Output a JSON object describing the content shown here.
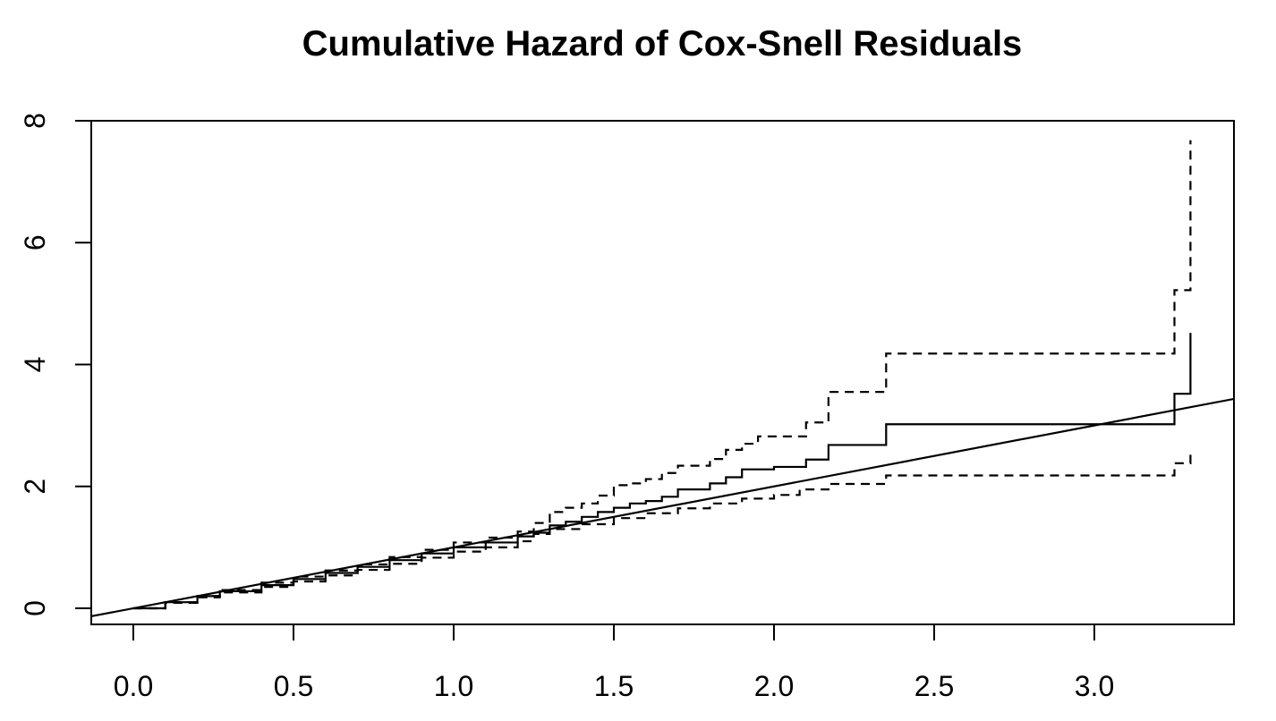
{
  "chart_data": {
    "type": "line",
    "title": "Cumulative Hazard of Cox-Snell Residuals",
    "xlabel": "",
    "ylabel": "",
    "xlim": [
      -0.13,
      3.44
    ],
    "ylim": [
      -0.3,
      8.0
    ],
    "x_ticks": [
      "0.0",
      "0.5",
      "1.0",
      "1.5",
      "2.0",
      "2.5",
      "3.0"
    ],
    "x_tick_values": [
      0.0,
      0.5,
      1.0,
      1.5,
      2.0,
      2.5,
      3.0
    ],
    "y_ticks": [
      "0",
      "2",
      "4",
      "6",
      "8"
    ],
    "y_tick_values": [
      0,
      2,
      4,
      6,
      8
    ],
    "grid": false,
    "colors": {
      "series": "#000000",
      "background": "#ffffff"
    },
    "series": [
      {
        "style": "solid-step",
        "x": [
          0.0,
          0.1,
          0.2,
          0.27,
          0.4,
          0.5,
          0.6,
          0.7,
          0.8,
          0.9,
          1.0,
          1.1,
          1.2,
          1.25,
          1.3,
          1.35,
          1.4,
          1.45,
          1.5,
          1.55,
          1.6,
          1.65,
          1.7,
          1.8,
          1.85,
          1.9,
          2.0,
          2.1,
          2.17,
          2.35,
          3.25,
          3.3
        ],
        "y": [
          0.0,
          0.1,
          0.2,
          0.28,
          0.38,
          0.48,
          0.58,
          0.68,
          0.79,
          0.9,
          1.0,
          1.08,
          1.18,
          1.24,
          1.36,
          1.42,
          1.5,
          1.58,
          1.65,
          1.72,
          1.76,
          1.83,
          1.95,
          2.05,
          2.15,
          2.28,
          2.32,
          2.44,
          2.68,
          3.02,
          3.52,
          4.52
        ]
      },
      {
        "style": "dashed-step",
        "x": [
          0.0,
          0.1,
          0.2,
          0.27,
          0.4,
          0.5,
          0.6,
          0.7,
          0.8,
          0.9,
          1.0,
          1.1,
          1.2,
          1.25,
          1.3,
          1.35,
          1.4,
          1.45,
          1.5,
          1.55,
          1.6,
          1.65,
          1.7,
          1.8,
          1.85,
          1.9,
          1.95,
          2.1,
          2.17,
          2.35,
          3.25,
          3.3
        ],
        "y": [
          0.0,
          0.1,
          0.2,
          0.3,
          0.42,
          0.52,
          0.62,
          0.72,
          0.84,
          0.96,
          1.08,
          1.16,
          1.26,
          1.4,
          1.58,
          1.65,
          1.72,
          1.85,
          2.02,
          2.05,
          2.12,
          2.22,
          2.34,
          2.45,
          2.6,
          2.7,
          2.82,
          3.05,
          3.55,
          4.18,
          5.22,
          7.68
        ]
      },
      {
        "style": "dashed-step",
        "x": [
          0.0,
          0.1,
          0.2,
          0.27,
          0.4,
          0.5,
          0.6,
          0.7,
          0.8,
          0.9,
          1.0,
          1.1,
          1.2,
          1.25,
          1.3,
          1.4,
          1.5,
          1.6,
          1.7,
          1.8,
          1.9,
          2.0,
          2.08,
          2.17,
          2.35,
          3.25,
          3.3
        ],
        "y": [
          0.0,
          0.09,
          0.18,
          0.26,
          0.35,
          0.44,
          0.54,
          0.63,
          0.73,
          0.83,
          0.93,
          1.0,
          1.1,
          1.22,
          1.3,
          1.38,
          1.48,
          1.56,
          1.64,
          1.72,
          1.8,
          1.86,
          1.95,
          2.04,
          2.18,
          2.38,
          2.62
        ]
      },
      {
        "style": "reference-line",
        "intercept": 0,
        "slope": 1
      }
    ]
  }
}
